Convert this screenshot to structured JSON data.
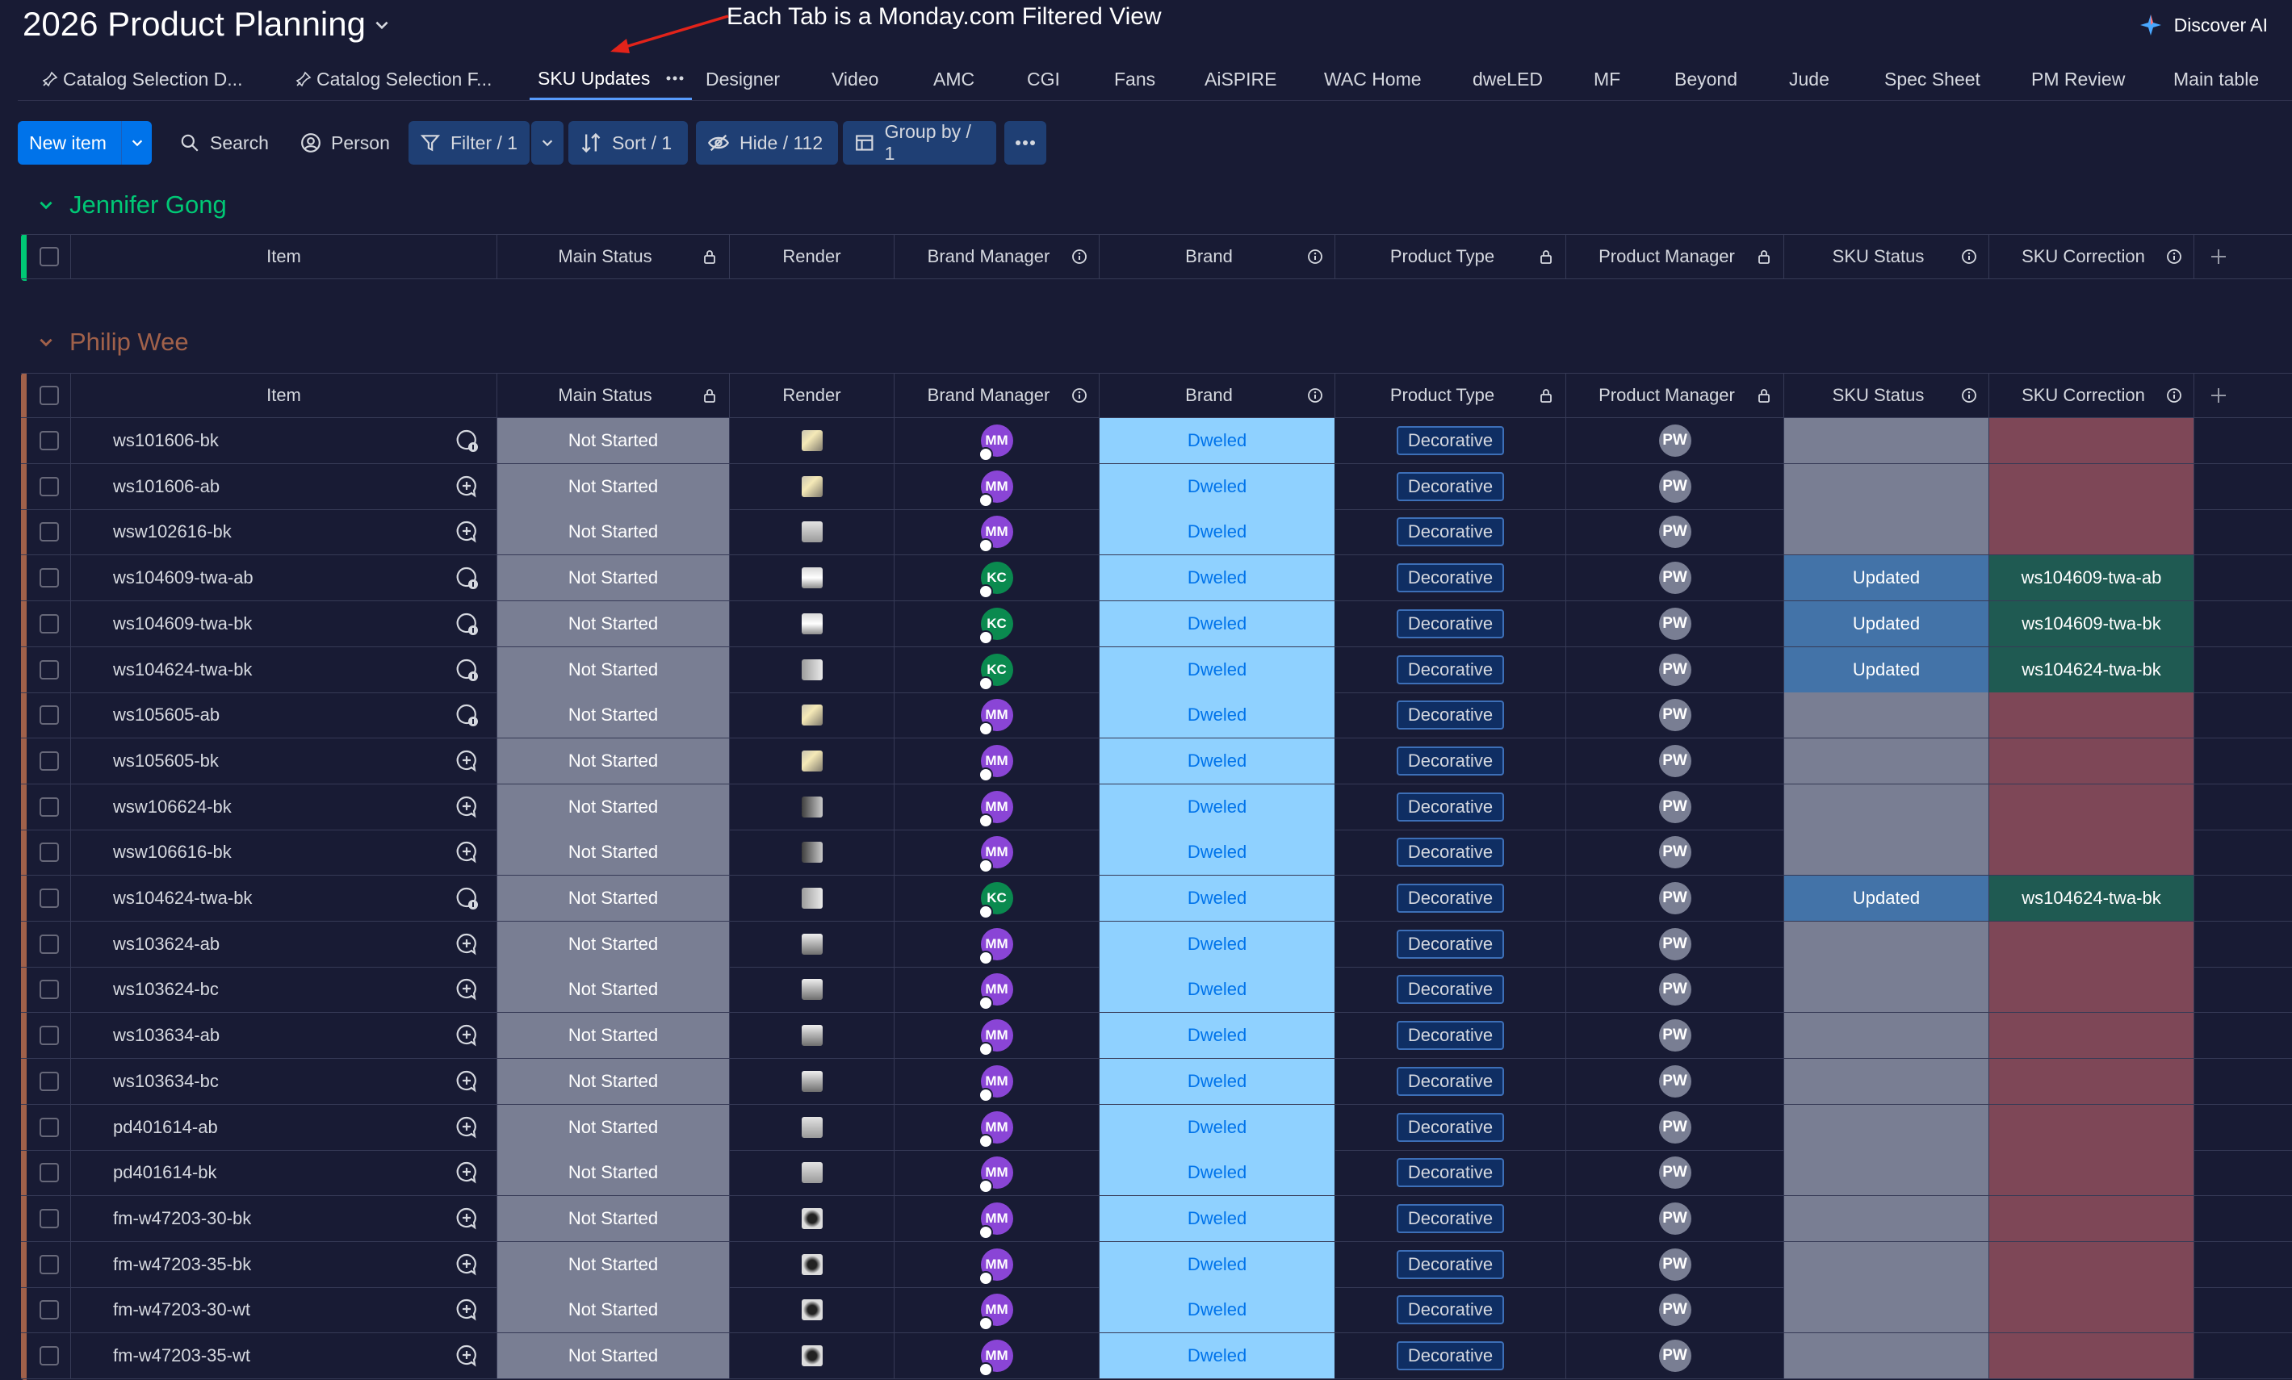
{
  "board": {
    "title": "2026 Product Planning"
  },
  "annotation": "Each Tab is a Monday.com Filtered View",
  "discover": {
    "label": "Discover AI"
  },
  "tabs": [
    {
      "label": "Catalog Selection D...",
      "pinned": true
    },
    {
      "label": "Catalog Selection F...",
      "pinned": true
    },
    {
      "label": "SKU Updates",
      "active": true
    },
    {
      "label": "Designer"
    },
    {
      "label": "Video"
    },
    {
      "label": "AMC"
    },
    {
      "label": "CGI"
    },
    {
      "label": "Fans"
    },
    {
      "label": "AiSPIRE"
    },
    {
      "label": "WAC Home"
    },
    {
      "label": "dweLED"
    },
    {
      "label": "MF"
    },
    {
      "label": "Beyond"
    },
    {
      "label": "Jude"
    },
    {
      "label": "Spec Sheet"
    },
    {
      "label": "PM Review"
    },
    {
      "label": "Main table"
    }
  ],
  "toolbar": {
    "new_item": "New item",
    "search": "Search",
    "person": "Person",
    "filter": "Filter / 1",
    "sort": "Sort / 1",
    "hide": "Hide / 112",
    "group_by": "Group by / 1"
  },
  "columns": {
    "item": "Item",
    "main_status": "Main Status",
    "render": "Render",
    "brand_manager": "Brand Manager",
    "brand": "Brand",
    "product_type": "Product Type",
    "product_manager": "Product Manager",
    "sku_status": "SKU Status",
    "sku_correction": "SKU Correction"
  },
  "colors": {
    "group1": "#00c875",
    "group2": "#a1614a",
    "accent": "#0073ea"
  },
  "groups": [
    {
      "name": "Jennifer Gong",
      "rows": []
    },
    {
      "name": "Philip Wee",
      "rows": [
        {
          "item": "ws101606-bk",
          "updates": true,
          "status": "Not Started",
          "render": "a",
          "bm": "MM",
          "brand": "Dweled",
          "type": "Decorative",
          "pm": "PW",
          "sku_status": "",
          "sku_corr": ""
        },
        {
          "item": "ws101606-ab",
          "updates": false,
          "status": "Not Started",
          "render": "a",
          "bm": "MM",
          "brand": "Dweled",
          "type": "Decorative",
          "pm": "PW",
          "sku_status": "",
          "sku_corr": ""
        },
        {
          "item": "wsw102616-bk",
          "updates": false,
          "status": "Not Started",
          "render": "b",
          "bm": "MM",
          "brand": "Dweled",
          "type": "Decorative",
          "pm": "PW",
          "sku_status": "",
          "sku_corr": ""
        },
        {
          "item": "ws104609-twa-ab",
          "updates": true,
          "status": "Not Started",
          "render": "c",
          "bm": "KC",
          "brand": "Dweled",
          "type": "Decorative",
          "pm": "PW",
          "sku_status": "Updated",
          "sku_corr": "ws104609-twa-ab"
        },
        {
          "item": "ws104609-twa-bk",
          "updates": true,
          "status": "Not Started",
          "render": "c",
          "bm": "KC",
          "brand": "Dweled",
          "type": "Decorative",
          "pm": "PW",
          "sku_status": "Updated",
          "sku_corr": "ws104609-twa-bk"
        },
        {
          "item": "ws104624-twa-bk",
          "updates": true,
          "status": "Not Started",
          "render": "d",
          "bm": "KC",
          "brand": "Dweled",
          "type": "Decorative",
          "pm": "PW",
          "sku_status": "Updated",
          "sku_corr": "ws104624-twa-bk"
        },
        {
          "item": "ws105605-ab",
          "updates": true,
          "status": "Not Started",
          "render": "a",
          "bm": "MM",
          "brand": "Dweled",
          "type": "Decorative",
          "pm": "PW",
          "sku_status": "",
          "sku_corr": ""
        },
        {
          "item": "ws105605-bk",
          "updates": false,
          "status": "Not Started",
          "render": "a",
          "bm": "MM",
          "brand": "Dweled",
          "type": "Decorative",
          "pm": "PW",
          "sku_status": "",
          "sku_corr": ""
        },
        {
          "item": "wsw106624-bk",
          "updates": false,
          "status": "Not Started",
          "render": "e",
          "bm": "MM",
          "brand": "Dweled",
          "type": "Decorative",
          "pm": "PW",
          "sku_status": "",
          "sku_corr": ""
        },
        {
          "item": "wsw106616-bk",
          "updates": false,
          "status": "Not Started",
          "render": "e",
          "bm": "MM",
          "brand": "Dweled",
          "type": "Decorative",
          "pm": "PW",
          "sku_status": "",
          "sku_corr": ""
        },
        {
          "item": "ws104624-twa-bk",
          "updates": true,
          "status": "Not Started",
          "render": "d",
          "bm": "KC",
          "brand": "Dweled",
          "type": "Decorative",
          "pm": "PW",
          "sku_status": "Updated",
          "sku_corr": "ws104624-twa-bk"
        },
        {
          "item": "ws103624-ab",
          "updates": false,
          "status": "Not Started",
          "render": "f",
          "bm": "MM",
          "brand": "Dweled",
          "type": "Decorative",
          "pm": "PW",
          "sku_status": "",
          "sku_corr": ""
        },
        {
          "item": "ws103624-bc",
          "updates": false,
          "status": "Not Started",
          "render": "f",
          "bm": "MM",
          "brand": "Dweled",
          "type": "Decorative",
          "pm": "PW",
          "sku_status": "",
          "sku_corr": ""
        },
        {
          "item": "ws103634-ab",
          "updates": false,
          "status": "Not Started",
          "render": "f",
          "bm": "MM",
          "brand": "Dweled",
          "type": "Decorative",
          "pm": "PW",
          "sku_status": "",
          "sku_corr": ""
        },
        {
          "item": "ws103634-bc",
          "updates": false,
          "status": "Not Started",
          "render": "f",
          "bm": "MM",
          "brand": "Dweled",
          "type": "Decorative",
          "pm": "PW",
          "sku_status": "",
          "sku_corr": ""
        },
        {
          "item": "pd401614-ab",
          "updates": false,
          "status": "Not Started",
          "render": "b",
          "bm": "MM",
          "brand": "Dweled",
          "type": "Decorative",
          "pm": "PW",
          "sku_status": "",
          "sku_corr": ""
        },
        {
          "item": "pd401614-bk",
          "updates": false,
          "status": "Not Started",
          "render": "b",
          "bm": "MM",
          "brand": "Dweled",
          "type": "Decorative",
          "pm": "PW",
          "sku_status": "",
          "sku_corr": ""
        },
        {
          "item": "fm-w47203-30-bk",
          "updates": false,
          "status": "Not Started",
          "render": "g",
          "bm": "MM",
          "brand": "Dweled",
          "type": "Decorative",
          "pm": "PW",
          "sku_status": "",
          "sku_corr": ""
        },
        {
          "item": "fm-w47203-35-bk",
          "updates": false,
          "status": "Not Started",
          "render": "g",
          "bm": "MM",
          "brand": "Dweled",
          "type": "Decorative",
          "pm": "PW",
          "sku_status": "",
          "sku_corr": ""
        },
        {
          "item": "fm-w47203-30-wt",
          "updates": false,
          "status": "Not Started",
          "render": "g",
          "bm": "MM",
          "brand": "Dweled",
          "type": "Decorative",
          "pm": "PW",
          "sku_status": "",
          "sku_corr": ""
        },
        {
          "item": "fm-w47203-35-wt",
          "updates": false,
          "status": "Not Started",
          "render": "g",
          "bm": "MM",
          "brand": "Dweled",
          "type": "Decorative",
          "pm": "PW",
          "sku_status": "",
          "sku_corr": ""
        }
      ]
    }
  ]
}
